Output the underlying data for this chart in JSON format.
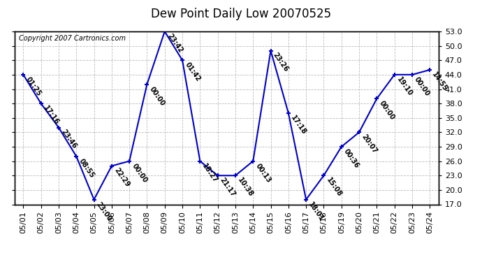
{
  "title": "Dew Point Daily Low 20070525",
  "copyright": "Copyright 2007 Cartronics.com",
  "dates": [
    "05/01",
    "05/02",
    "05/03",
    "05/04",
    "05/05",
    "05/06",
    "05/07",
    "05/08",
    "05/09",
    "05/10",
    "05/11",
    "05/12",
    "05/13",
    "05/14",
    "05/15",
    "05/16",
    "05/17",
    "05/18",
    "05/19",
    "05/20",
    "05/21",
    "05/22",
    "05/23",
    "05/24"
  ],
  "values": [
    44.0,
    38.0,
    33.0,
    27.0,
    18.0,
    25.0,
    26.0,
    42.0,
    53.0,
    47.0,
    26.0,
    23.0,
    23.0,
    26.0,
    49.0,
    36.0,
    18.0,
    23.0,
    29.0,
    32.0,
    39.0,
    44.0,
    44.0,
    45.0
  ],
  "labels": [
    "01:25",
    "17:16",
    "23:46",
    "08:55",
    "23:00",
    "22:29",
    "00:00",
    "00:00",
    "23:42",
    "01:42",
    "18:27",
    "21:17",
    "10:38",
    "00:13",
    "23:26",
    "17:18",
    "18:01",
    "15:08",
    "00:36",
    "20:07",
    "00:00",
    "19:10",
    "00:00",
    "14:55"
  ],
  "line_color": "#0000cc",
  "marker_color": "#0000cc",
  "bg_color": "#ffffff",
  "grid_color": "#bbbbbb",
  "ylim": [
    17.0,
    53.0
  ],
  "yticks": [
    17.0,
    20.0,
    23.0,
    26.0,
    29.0,
    32.0,
    35.0,
    38.0,
    41.0,
    44.0,
    47.0,
    50.0,
    53.0
  ],
  "title_fontsize": 12,
  "label_fontsize": 7,
  "copyright_fontsize": 7,
  "tick_fontsize": 8
}
